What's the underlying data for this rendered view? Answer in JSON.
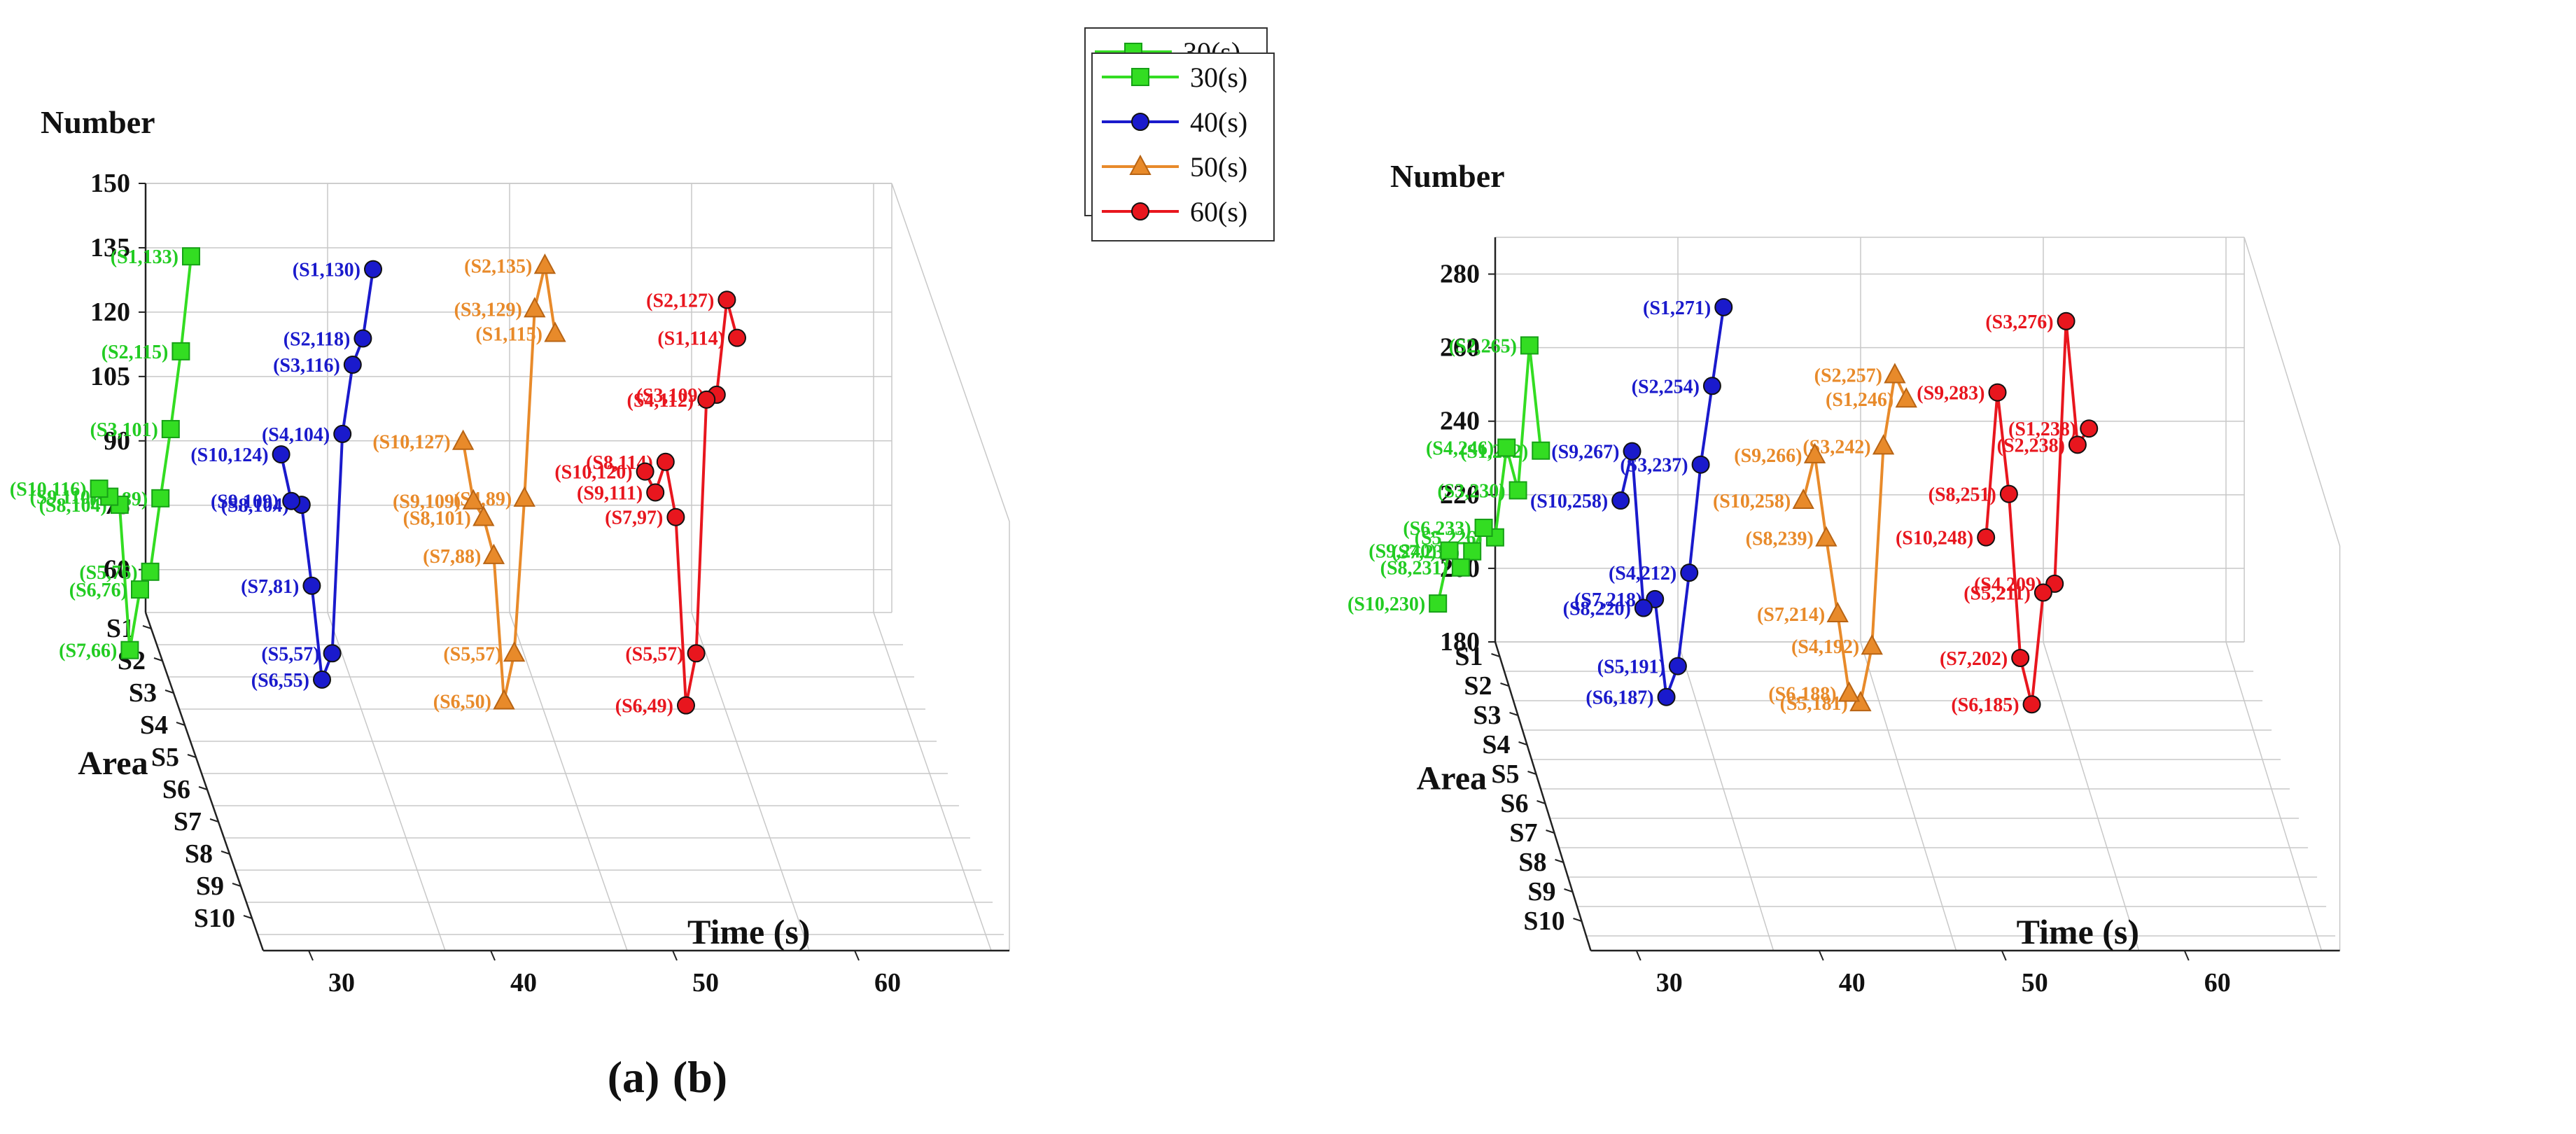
{
  "chart_data": [
    {
      "type": "line3d",
      "panel_label": "(a)",
      "zlabel": "Number",
      "ylabel": "Area",
      "xlabel": "Time (s)",
      "zlim": [
        50,
        150
      ],
      "z_ticks": [
        "150",
        "135",
        "120",
        "105",
        "90",
        "75",
        "60"
      ],
      "x_ticks": [
        "30",
        "40",
        "50",
        "60"
      ],
      "y_ticks": [
        "S1",
        "S2",
        "S3",
        "S4",
        "S5",
        "S6",
        "S7",
        "S8",
        "S9",
        "S10"
      ],
      "legend": [
        "30(s)",
        "40(s)",
        "50(s)",
        "60(s)"
      ],
      "series": [
        {
          "name": "30(s)",
          "time": 30,
          "color": "#33dd22",
          "label_color": "#22cc22",
          "marker": "square",
          "values": [
            133,
            115,
            101,
            89,
            76,
            76,
            66,
            104,
            110,
            116
          ],
          "labels": [
            "(S1,133)",
            "(S2,115)",
            "(S3,101)",
            "(S4,89)",
            "(S5,76)",
            "(S6,76)",
            "(S7,66)",
            "(S8,104)",
            "(S9,110)",
            "(S10,116)"
          ]
        },
        {
          "name": "40(s)",
          "time": 40,
          "color": "#1a1acc",
          "label_color": "#1a1acc",
          "marker": "circle",
          "values": [
            130,
            118,
            116,
            104,
            57,
            55,
            81,
            104,
            109,
            124
          ],
          "labels": [
            "(S1,130)",
            "(S2,118)",
            "(S3,116)",
            "(S4,104)",
            "(S5,57)",
            "(S6,55)",
            "(S7,81)",
            "(S8,104)",
            "(S9,109)",
            "(S10,124)"
          ]
        },
        {
          "name": "50(s)",
          "time": 50,
          "color": "#e88a2a",
          "label_color": "#e88a2a",
          "marker": "triangle",
          "values": [
            115,
            135,
            129,
            89,
            57,
            50,
            88,
            101,
            109,
            127
          ],
          "labels": [
            "(S1,115)",
            "(S2,135)",
            "(S3,129)",
            "(S4,89)",
            "(S5,57)",
            "(S6,50)",
            "(S7,88)",
            "(S8,101)",
            "(S9,109)",
            "(S10,127)"
          ]
        },
        {
          "name": "60(s)",
          "time": 60,
          "color": "#e8161e",
          "label_color": "#e8161e",
          "marker": "circle",
          "values": [
            114,
            127,
            109,
            112,
            57,
            49,
            97,
            114,
            111,
            120
          ],
          "labels": [
            "(S1,114)",
            "(S2,127)",
            "(S3,109)",
            "(S4,112)",
            "(S5,57)",
            "(S6,49)",
            "(S7,97)",
            "(S8,114)",
            "(S9,111)",
            "(S10,120)"
          ]
        }
      ]
    },
    {
      "type": "line3d",
      "panel_label": "(b)",
      "zlabel": "Number",
      "ylabel": "Area",
      "xlabel": "Time (s)",
      "zlim": [
        180,
        290
      ],
      "z_ticks": [
        "280",
        "260",
        "240",
        "220",
        "200",
        "180"
      ],
      "x_ticks": [
        "30",
        "40",
        "50",
        "60"
      ],
      "y_ticks": [
        "S1",
        "S2",
        "S3",
        "S4",
        "S5",
        "S6",
        "S7",
        "S8",
        "S9",
        "S10"
      ],
      "legend": [
        "30(s)",
        "40(s)",
        "50(s)",
        "60(s)"
      ],
      "series": [
        {
          "name": "30(s)",
          "time": 30,
          "color": "#33dd22",
          "label_color": "#22cc22",
          "marker": "square",
          "values": [
            232,
            265,
            230,
            246,
            226,
            233,
            231,
            231,
            240,
            230
          ],
          "labels": [
            "(S1,232)",
            "(S2,265)",
            "(S3,230)",
            "(S4,246)",
            "(S5,226)",
            "(S6,233)",
            "(S7,231)",
            "(S8,231)",
            "(S9,240)",
            "(S10,230)"
          ]
        },
        {
          "name": "40(s)",
          "time": 40,
          "color": "#1a1acc",
          "label_color": "#1a1acc",
          "marker": "circle",
          "values": [
            271,
            254,
            237,
            212,
            191,
            187,
            218,
            220,
            267,
            258
          ],
          "labels": [
            "(S1,271)",
            "(S2,254)",
            "(S3,237)",
            "(S4,212)",
            "(S5,191)",
            "(S6,187)",
            "(S7,218)",
            "(S8,220)",
            "(S9,267)",
            "(S10,258)"
          ]
        },
        {
          "name": "50(s)",
          "time": 50,
          "color": "#e88a2a",
          "label_color": "#e88a2a",
          "marker": "triangle",
          "values": [
            246,
            257,
            242,
            192,
            181,
            188,
            214,
            239,
            266,
            258
          ],
          "labels": [
            "(S1,246)",
            "(S2,257)",
            "(S3,242)",
            "(S4,192)",
            "(S5,181)",
            "(S6,188)",
            "(S7,214)",
            "(S8,239)",
            "(S9,266)",
            "(S10,258)"
          ]
        },
        {
          "name": "60(s)",
          "time": 60,
          "color": "#e8161e",
          "label_color": "#e8161e",
          "marker": "circle",
          "values": [
            238,
            238,
            276,
            209,
            211,
            185,
            202,
            251,
            283,
            248
          ],
          "labels": [
            "(S1,238)",
            "(S2,238)",
            "(S3,276)",
            "(S4,209)",
            "(S5,211)",
            "(S6,185)",
            "(S7,202)",
            "(S8,251)",
            "(S9,283)",
            "(S10,248)"
          ]
        }
      ]
    }
  ]
}
